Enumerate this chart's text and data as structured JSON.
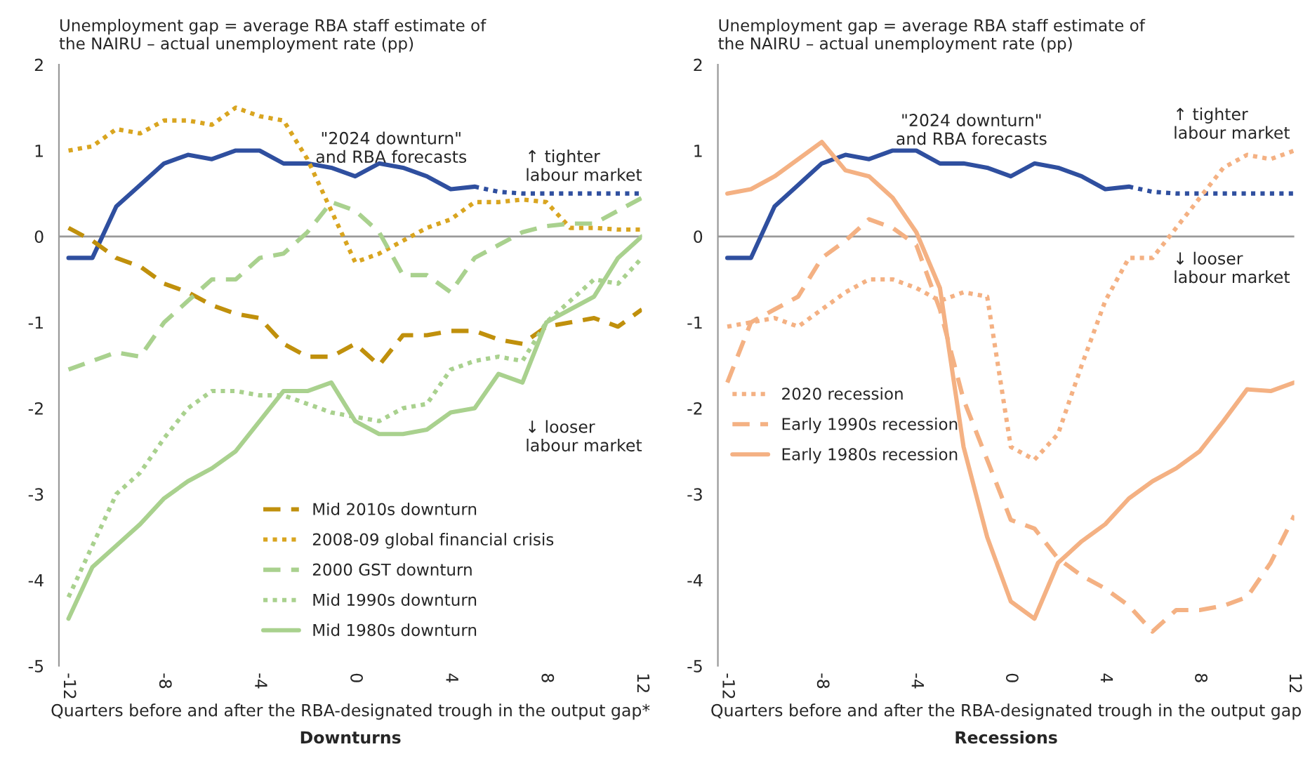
{
  "chart_data": [
    {
      "type": "line",
      "title": "Downturns",
      "ylabel": "Unemployment gap = average RBA staff estimate of\nthe NAIRU – actual unemployment rate (pp)",
      "xlabel": "Quarters before and after the RBA-designated trough in the output gap*",
      "xlim": [
        -12.4,
        12
      ],
      "xticks": [
        -12,
        -8,
        -4,
        0,
        4,
        8,
        12
      ],
      "ylim": [
        -5,
        2
      ],
      "yticks": [
        -5,
        -4,
        -3,
        -2,
        -1,
        0,
        1,
        2
      ],
      "grid": false,
      "legend": "bottom",
      "marker": "none",
      "ref_lines": [
        {
          "axis": "y",
          "value": 0,
          "color": "#999999"
        }
      ],
      "annotations": [
        "\"2024 downturn\"\nand RBA forecasts",
        "↑ tighter\nlabour market",
        "↓ looser\nlabour market"
      ],
      "series": [
        {
          "color": "#2f4f9f",
          "line_style": "solid",
          "x": [
            -12,
            -11,
            -10,
            -9,
            -8,
            -7,
            -6,
            -5,
            -4,
            -3,
            -2,
            -1,
            0,
            1,
            2,
            3,
            4,
            5
          ],
          "values": [
            -0.25,
            -0.25,
            0.35,
            0.6,
            0.85,
            0.95,
            0.9,
            1.0,
            1.0,
            0.85,
            0.85,
            0.8,
            0.7,
            0.85,
            0.8,
            0.7,
            0.55,
            0.58
          ]
        },
        {
          "color": "#2f4f9f",
          "line_style": "dotted",
          "x": [
            5,
            6,
            7,
            8,
            9,
            10,
            11,
            12
          ],
          "values": [
            0.58,
            0.52,
            0.5,
            0.5,
            0.5,
            0.5,
            0.5,
            0.5
          ]
        },
        {
          "name": "Mid 2010s downturn",
          "color": "#c0900c",
          "line_style": "dashed",
          "x": [
            -12,
            -11,
            -10,
            -9,
            -8,
            -7,
            -6,
            -5,
            -4,
            -3,
            -2,
            -1,
            0,
            1,
            2,
            3,
            4,
            5,
            6,
            7,
            8,
            9,
            10,
            11,
            12
          ],
          "values": [
            0.1,
            -0.05,
            -0.25,
            -0.35,
            -0.55,
            -0.65,
            -0.8,
            -0.9,
            -0.95,
            -1.25,
            -1.4,
            -1.4,
            -1.25,
            -1.5,
            -1.15,
            -1.15,
            -1.1,
            -1.1,
            -1.2,
            -1.25,
            -1.05,
            -1.0,
            -0.95,
            -1.05,
            -0.85
          ]
        },
        {
          "name": "2008-09 global financial crisis",
          "color": "#d9a520",
          "line_style": "dotted",
          "x": [
            -12,
            -11,
            -10,
            -9,
            -8,
            -7,
            -6,
            -5,
            -4,
            -3,
            -2,
            -1,
            0,
            1,
            2,
            3,
            4,
            5,
            6,
            7,
            8,
            9,
            10,
            11,
            12
          ],
          "values": [
            1.0,
            1.05,
            1.25,
            1.2,
            1.35,
            1.35,
            1.3,
            1.5,
            1.4,
            1.35,
            0.9,
            0.3,
            -0.3,
            -0.2,
            -0.05,
            0.1,
            0.2,
            0.4,
            0.4,
            0.43,
            0.4,
            0.1,
            0.1,
            0.08,
            0.08
          ]
        },
        {
          "name": "2000 GST downturn",
          "color": "#a9d18e",
          "line_style": "dashed",
          "x": [
            -12,
            -11,
            -10,
            -9,
            -8,
            -7,
            -6,
            -5,
            -4,
            -3,
            -2,
            -1,
            0,
            1,
            2,
            3,
            4,
            5,
            6,
            7,
            8,
            9,
            10,
            11,
            12
          ],
          "values": [
            -1.55,
            -1.45,
            -1.35,
            -1.4,
            -1.0,
            -0.75,
            -0.5,
            -0.5,
            -0.25,
            -0.2,
            0.05,
            0.4,
            0.3,
            0.05,
            -0.45,
            -0.45,
            -0.65,
            -0.25,
            -0.1,
            0.05,
            0.12,
            0.15,
            0.15,
            0.3,
            0.45
          ]
        },
        {
          "name": "Mid 1990s downturn",
          "color": "#a9d18e",
          "line_style": "dotted",
          "x": [
            -12,
            -11,
            -10,
            -9,
            -8,
            -7,
            -6,
            -5,
            -4,
            -3,
            -2,
            -1,
            0,
            1,
            2,
            3,
            4,
            5,
            6,
            7,
            8,
            9,
            10,
            11,
            12
          ],
          "values": [
            -4.2,
            -3.6,
            -3.0,
            -2.75,
            -2.35,
            -2.0,
            -1.8,
            -1.8,
            -1.85,
            -1.85,
            -1.95,
            -2.05,
            -2.1,
            -2.15,
            -2.0,
            -1.95,
            -1.55,
            -1.45,
            -1.4,
            -1.45,
            -1.0,
            -0.75,
            -0.5,
            -0.55,
            -0.25
          ]
        },
        {
          "name": "Mid 1980s downturn",
          "color": "#a9d18e",
          "line_style": "solid",
          "x": [
            -12,
            -11,
            -10,
            -9,
            -8,
            -7,
            -6,
            -5,
            -4,
            -3,
            -2,
            -1,
            0,
            1,
            2,
            3,
            4,
            5,
            6,
            7,
            8,
            9,
            10,
            11,
            12
          ],
          "values": [
            -4.45,
            -3.85,
            -3.6,
            -3.35,
            -3.05,
            -2.85,
            -2.7,
            -2.5,
            -2.15,
            -1.8,
            -1.8,
            -1.7,
            -2.15,
            -2.3,
            -2.3,
            -2.25,
            -2.05,
            -2.0,
            -1.6,
            -1.7,
            -1.0,
            -0.85,
            -0.7,
            -0.25,
            0.0
          ]
        }
      ]
    },
    {
      "type": "line",
      "title": "Recessions",
      "ylabel": "Unemployment gap = average RBA staff estimate of\nthe NAIRU – actual unemployment rate (pp)",
      "xlabel": "Quarters before and after the RBA-designated trough in the output gap",
      "xlim": [
        -12.4,
        12
      ],
      "xticks": [
        -12,
        -8,
        -4,
        0,
        4,
        8,
        12
      ],
      "ylim": [
        -5,
        2
      ],
      "yticks": [
        -5,
        -4,
        -3,
        -2,
        -1,
        0,
        1,
        2
      ],
      "grid": false,
      "legend": "left",
      "marker": "none",
      "ref_lines": [
        {
          "axis": "y",
          "value": 0,
          "color": "#999999"
        }
      ],
      "annotations": [
        "\"2024 downturn\"\nand RBA forecasts",
        "↑ tighter\nlabour market",
        "↓ looser\nlabour market"
      ],
      "series": [
        {
          "color": "#2f4f9f",
          "line_style": "solid",
          "x": [
            -12,
            -11,
            -10,
            -9,
            -8,
            -7,
            -6,
            -5,
            -4,
            -3,
            -2,
            -1,
            0,
            1,
            2,
            3,
            4,
            5
          ],
          "values": [
            -0.25,
            -0.25,
            0.35,
            0.6,
            0.85,
            0.95,
            0.9,
            1.0,
            1.0,
            0.85,
            0.85,
            0.8,
            0.7,
            0.85,
            0.8,
            0.7,
            0.55,
            0.58
          ]
        },
        {
          "color": "#2f4f9f",
          "line_style": "dotted",
          "x": [
            5,
            6,
            7,
            8,
            9,
            10,
            11,
            12
          ],
          "values": [
            0.58,
            0.52,
            0.5,
            0.5,
            0.5,
            0.5,
            0.5,
            0.5
          ]
        },
        {
          "name": "2020 recession",
          "color": "#f4b183",
          "line_style": "dotted",
          "x": [
            -12,
            -11,
            -10,
            -9,
            -8,
            -7,
            -6,
            -5,
            -4,
            -3,
            -2,
            -1,
            0,
            1,
            2,
            3,
            4,
            5,
            6,
            7,
            8,
            9,
            10,
            11,
            12
          ],
          "values": [
            -1.05,
            -1.0,
            -0.95,
            -1.05,
            -0.85,
            -0.65,
            -0.5,
            -0.5,
            -0.6,
            -0.75,
            -0.65,
            -0.7,
            -2.45,
            -2.6,
            -2.3,
            -1.5,
            -0.75,
            -0.25,
            -0.25,
            0.1,
            0.45,
            0.8,
            0.95,
            0.9,
            1.0
          ]
        },
        {
          "name": "Early 1990s recession",
          "color": "#f4b183",
          "line_style": "dashed",
          "x": [
            -12,
            -11,
            -10,
            -9,
            -8,
            -7,
            -6,
            -5,
            -4,
            -3,
            -2,
            -1,
            0,
            1,
            2,
            3,
            4,
            5,
            6,
            7,
            8,
            9,
            10,
            11,
            12
          ],
          "values": [
            -1.7,
            -1.0,
            -0.85,
            -0.7,
            -0.25,
            -0.05,
            0.2,
            0.1,
            -0.1,
            -0.85,
            -1.9,
            -2.6,
            -3.3,
            -3.4,
            -3.75,
            -3.95,
            -4.1,
            -4.3,
            -4.6,
            -4.35,
            -4.35,
            -4.3,
            -4.2,
            -3.8,
            -3.25
          ]
        },
        {
          "name": "Early 1980s recession",
          "color": "#f4b183",
          "line_style": "solid",
          "x": [
            -12,
            -11,
            -10,
            -9,
            -8,
            -7,
            -6,
            -5,
            -4,
            -3,
            -2,
            -1,
            0,
            1,
            2,
            3,
            4,
            5,
            6,
            7,
            8,
            9,
            10,
            11,
            12
          ],
          "values": [
            0.5,
            0.55,
            0.7,
            0.9,
            1.1,
            0.77,
            0.7,
            0.45,
            0.05,
            -0.6,
            -2.45,
            -3.5,
            -4.25,
            -4.45,
            -3.8,
            -3.55,
            -3.35,
            -3.05,
            -2.85,
            -2.7,
            -2.5,
            -2.15,
            -1.78,
            -1.8,
            -1.7
          ]
        }
      ]
    }
  ]
}
